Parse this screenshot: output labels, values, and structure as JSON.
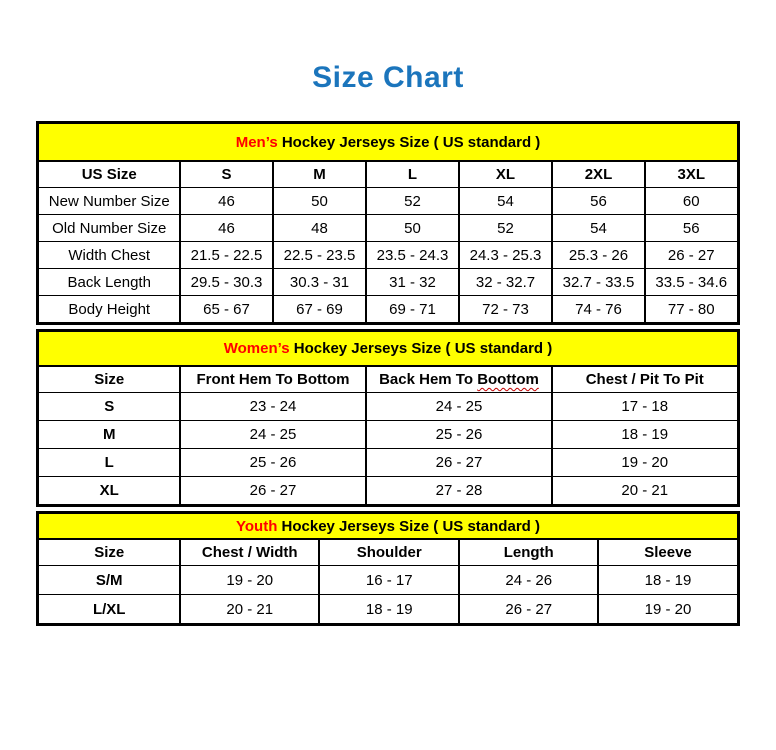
{
  "page": {
    "title": "Size Chart"
  },
  "colors": {
    "title_blue": "#1b75bc",
    "band_yellow": "#ffff00",
    "accent_red": "#ff0000",
    "squiggle_red": "#c00000",
    "border_black": "#000000"
  },
  "tables": [
    {
      "id": "mens",
      "band": {
        "highlight": "Men’s",
        "rest": " Hockey Jerseys Size ( US standard )"
      },
      "columns": [
        "US Size",
        "S",
        "M",
        "L",
        "XL",
        "2XL",
        "3XL"
      ],
      "rows": [
        {
          "label": "New Number Size",
          "values": [
            "46",
            "50",
            "52",
            "54",
            "56",
            "60"
          ]
        },
        {
          "label": "Old Number Size",
          "values": [
            "46",
            "48",
            "50",
            "52",
            "54",
            "56"
          ]
        },
        {
          "label": "Width Chest",
          "values": [
            "21.5 - 22.5",
            "22.5 - 23.5",
            "23.5 - 24.3",
            "24.3 - 25.3",
            "25.3 - 26",
            "26 - 27"
          ]
        },
        {
          "label": "Back Length",
          "values": [
            "29.5 - 30.3",
            "30.3 - 31",
            "31 - 32",
            "32 - 32.7",
            "32.7 - 33.5",
            "33.5 - 34.6"
          ]
        },
        {
          "label": "Body Height",
          "values": [
            "65 - 67",
            "67 - 69",
            "69 - 71",
            "72 - 73",
            "74 - 76",
            "77 - 80"
          ]
        }
      ]
    },
    {
      "id": "womens",
      "band": {
        "highlight": "Women’s",
        "rest": " Hockey Jerseys Size ( US standard )"
      },
      "columns": [
        "Size",
        "Front Hem To Bottom",
        "Back Hem To Boottom",
        "Chest / Pit To Pit"
      ],
      "back_hem_header_parts": {
        "prefix": "Back Hem To ",
        "misspelled_word": "Boottom"
      },
      "rows": [
        {
          "label": "S",
          "values": [
            "23 - 24",
            "24 - 25",
            "17 - 18"
          ]
        },
        {
          "label": "M",
          "values": [
            "24 - 25",
            "25 - 26",
            "18 - 19"
          ]
        },
        {
          "label": "L",
          "values": [
            "25 - 26",
            "26 - 27",
            "19 - 20"
          ]
        },
        {
          "label": "XL",
          "values": [
            "26 - 27",
            "27 - 28",
            "20 - 21"
          ]
        }
      ]
    },
    {
      "id": "youth",
      "band": {
        "highlight": "Youth",
        "rest": " Hockey Jerseys Size ( US standard )"
      },
      "columns": [
        "Size",
        "Chest / Width",
        "Shoulder",
        "Length",
        "Sleeve"
      ],
      "rows": [
        {
          "label": "S/M",
          "values": [
            "19 - 20",
            "16 - 17",
            "24 - 26",
            "18 - 19"
          ]
        },
        {
          "label": "L/XL",
          "values": [
            "20 - 21",
            "18 - 19",
            "26 - 27",
            "19 - 20"
          ]
        }
      ]
    }
  ]
}
